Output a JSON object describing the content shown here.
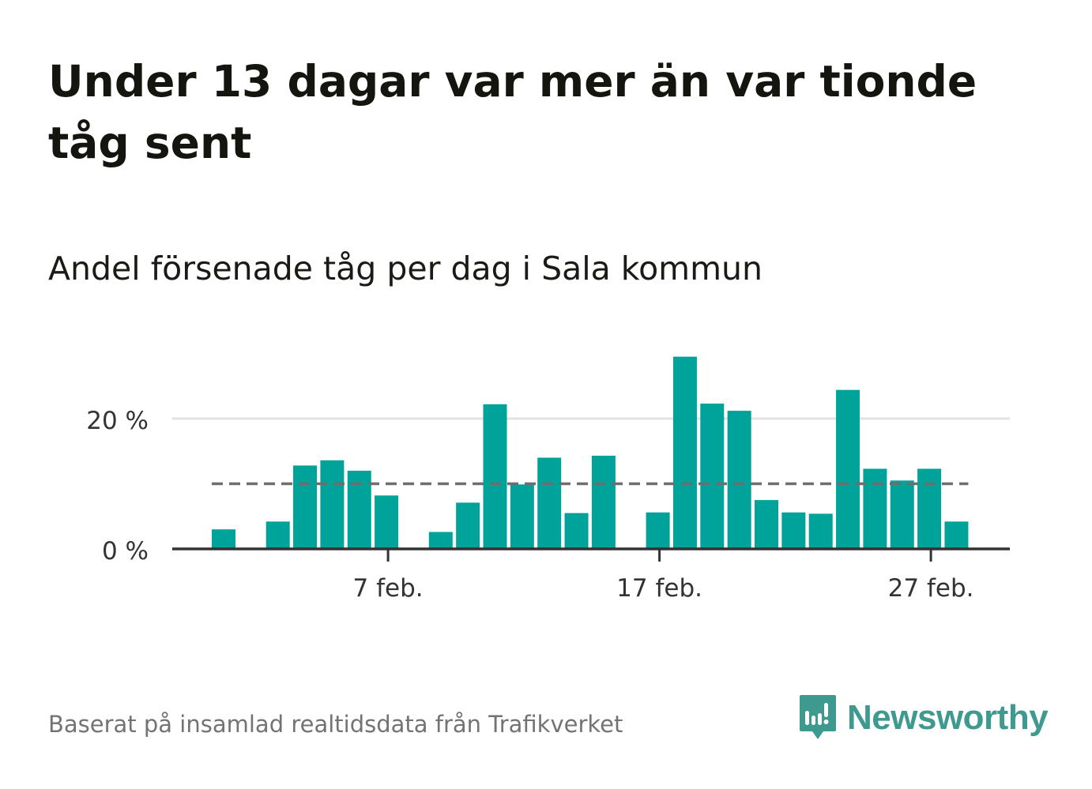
{
  "title": "Under 13 dagar var mer än var tionde tåg sent",
  "subtitle": "Andel försenade tåg per dag i Sala kommun",
  "source": "Baserat på insamlad realtidsdata från Trafikverket",
  "brand": {
    "name": "Newsworthy",
    "icon": "newsworthy-logo-icon",
    "color": "#3e9a8f"
  },
  "colors": {
    "bar": "#00a39a",
    "reference": "#6e6e6e",
    "grid": "#e2e2e2",
    "axis": "#333333"
  },
  "chart_data": {
    "type": "bar",
    "title": "Andel försenade tåg per dag i Sala kommun",
    "xlabel": "",
    "ylabel": "",
    "x_tick_labels": [
      "7 feb.",
      "17 feb.",
      "27 feb."
    ],
    "x_tick_days": [
      7,
      17,
      27
    ],
    "y_tick_labels": [
      "0 %",
      "20 %"
    ],
    "y_tick_values": [
      0,
      20
    ],
    "ylim": [
      0,
      30
    ],
    "grid": true,
    "reference_line": {
      "value": 10,
      "style": "dashed"
    },
    "days": [
      1,
      2,
      3,
      4,
      5,
      6,
      7,
      8,
      9,
      10,
      11,
      12,
      13,
      14,
      15,
      16,
      17,
      18,
      19,
      20,
      21,
      22,
      23,
      24,
      25,
      26,
      27,
      28
    ],
    "values": [
      3.0,
      0,
      4.2,
      12.8,
      13.6,
      12.0,
      8.2,
      0,
      2.6,
      7.1,
      22.2,
      9.9,
      14.0,
      5.5,
      14.3,
      0,
      5.6,
      29.5,
      22.3,
      21.2,
      7.5,
      5.6,
      5.4,
      24.4,
      12.3,
      10.5,
      12.3,
      4.2
    ]
  }
}
